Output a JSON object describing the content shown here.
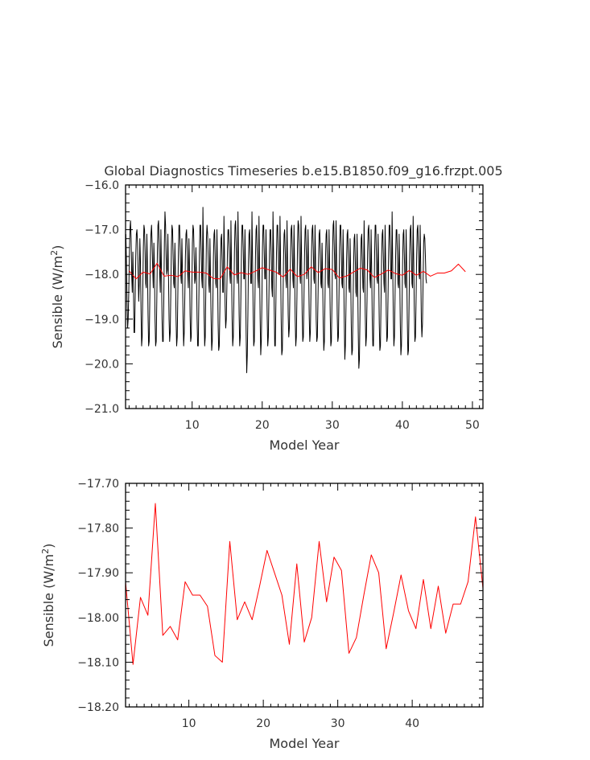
{
  "page": {
    "title": "Global Diagnostics Timeseries b.e15.B1850.f09_g16.frzpt.005"
  },
  "colors": {
    "monthly": "#000000",
    "annual": "#ff0000",
    "text": "#333333",
    "background": "#ffffff"
  },
  "chart_data": [
    {
      "type": "line",
      "title": "Global Diagnostics Timeseries b.e15.B1850.f09_g16.frzpt.005",
      "xlabel": "Model Year",
      "ylabel": "Sensible (W/m²)",
      "ylabel_main": "Sensible (W/m",
      "ylabel_sup": "2",
      "ylabel_end": ")",
      "xlim": [
        0.5,
        51.5
      ],
      "ylim": [
        -21.0,
        -16.0
      ],
      "xticks": [
        10,
        20,
        30,
        40,
        50
      ],
      "xtick_labels": [
        "10",
        "20",
        "30",
        "40",
        "50"
      ],
      "yticks": [
        -21.0,
        -20.0,
        -19.0,
        -18.0,
        -17.0,
        -16.0
      ],
      "ytick_labels": [
        "−21.0",
        "−20.0",
        "−19.0",
        "−18.0",
        "−17.0",
        "−16.0"
      ],
      "grid": false,
      "series": [
        {
          "color": "#000000",
          "x_start": 0.54,
          "x_step": 0.08333,
          "values": [
            -17.1,
            -17.7,
            -18.6,
            -19.2,
            -19.0,
            -18.4,
            -17.6,
            -17.0,
            -16.8,
            -17.2,
            -18.0,
            -18.4,
            -17.5,
            -18.2,
            -19.3,
            -19.3,
            -18.5,
            -17.6,
            -17.1,
            -17.0,
            -17.3,
            -17.9,
            -18.6,
            -18.2,
            -17.2,
            -17.7,
            -18.8,
            -19.6,
            -19.4,
            -18.4,
            -17.4,
            -16.9,
            -17.0,
            -17.5,
            -18.2,
            -18.3,
            -17.1,
            -17.8,
            -18.9,
            -19.6,
            -19.5,
            -18.6,
            -17.6,
            -17.1,
            -16.9,
            -17.3,
            -17.9,
            -18.3,
            -17.3,
            -17.9,
            -19.0,
            -19.6,
            -19.5,
            -18.6,
            -17.5,
            -16.9,
            -16.8,
            -17.3,
            -18.0,
            -18.4,
            -17.0,
            -17.9,
            -19.0,
            -19.5,
            -19.5,
            -18.6,
            -17.3,
            -16.6,
            -16.9,
            -17.6,
            -18.0,
            -17.9,
            -17.1,
            -18.0,
            -19.0,
            -19.5,
            -19.3,
            -18.4,
            -17.4,
            -16.9,
            -17.0,
            -17.6,
            -18.2,
            -18.3,
            -17.3,
            -18.0,
            -19.0,
            -19.6,
            -19.4,
            -18.5,
            -17.5,
            -16.9,
            -16.9,
            -17.4,
            -18.0,
            -18.2,
            -17.2,
            -18.0,
            -19.0,
            -19.6,
            -19.3,
            -18.5,
            -17.6,
            -17.1,
            -17.0,
            -17.4,
            -18.0,
            -18.3,
            -17.2,
            -17.8,
            -18.9,
            -19.5,
            -19.4,
            -18.4,
            -17.3,
            -16.9,
            -17.0,
            -17.6,
            -18.2,
            -18.1,
            -17.4,
            -18.0,
            -19.0,
            -19.6,
            -19.6,
            -18.6,
            -17.5,
            -16.9,
            -16.9,
            -17.5,
            -18.1,
            -18.3,
            -16.5,
            -17.6,
            -18.9,
            -19.6,
            -19.4,
            -18.3,
            -17.2,
            -16.9,
            -17.1,
            -17.6,
            -18.2,
            -18.4,
            -17.2,
            -18.1,
            -19.0,
            -19.7,
            -19.5,
            -18.7,
            -17.6,
            -17.1,
            -17.0,
            -17.6,
            -18.2,
            -18.3,
            -17.0,
            -17.9,
            -19.1,
            -19.7,
            -19.6,
            -18.8,
            -17.7,
            -17.2,
            -17.1,
            -17.7,
            -18.4,
            -18.4,
            -16.7,
            -17.6,
            -18.7,
            -19.2,
            -19.0,
            -18.3,
            -17.5,
            -17.0,
            -17.0,
            -17.4,
            -18.0,
            -18.2,
            -16.8,
            -17.9,
            -19.0,
            -19.6,
            -19.4,
            -18.6,
            -17.5,
            -16.9,
            -16.8,
            -17.4,
            -18.0,
            -18.2,
            -16.6,
            -17.7,
            -18.9,
            -19.6,
            -19.4,
            -18.5,
            -17.5,
            -16.9,
            -16.9,
            -17.4,
            -18.1,
            -18.1,
            -17.0,
            -18.0,
            -19.3,
            -20.2,
            -19.8,
            -18.9,
            -17.7,
            -17.1,
            -17.0,
            -17.6,
            -18.2,
            -18.2,
            -16.6,
            -17.7,
            -18.8,
            -19.6,
            -19.5,
            -18.6,
            -17.6,
            -17.0,
            -16.9,
            -17.5,
            -18.1,
            -18.3,
            -16.7,
            -17.9,
            -19.0,
            -19.8,
            -19.5,
            -18.6,
            -17.4,
            -16.9,
            -16.9,
            -17.5,
            -18.1,
            -18.1,
            -17.0,
            -17.9,
            -18.9,
            -19.6,
            -19.4,
            -18.5,
            -17.5,
            -17.0,
            -17.0,
            -17.6,
            -18.3,
            -18.5,
            -16.6,
            -17.5,
            -18.7,
            -19.6,
            -19.6,
            -18.6,
            -17.5,
            -16.9,
            -16.9,
            -17.5,
            -18.0,
            -18.0,
            -16.7,
            -17.8,
            -19.0,
            -19.8,
            -19.7,
            -18.8,
            -17.7,
            -17.1,
            -17.0,
            -17.5,
            -18.1,
            -18.3,
            -16.8,
            -17.8,
            -18.9,
            -19.4,
            -19.2,
            -18.4,
            -17.6,
            -17.0,
            -16.9,
            -17.4,
            -18.1,
            -18.3,
            -16.9,
            -17.9,
            -19.0,
            -19.6,
            -19.4,
            -18.5,
            -17.3,
            -16.8,
            -16.9,
            -17.5,
            -18.0,
            -18.2,
            -16.7,
            -17.7,
            -18.9,
            -19.5,
            -19.4,
            -18.6,
            -17.6,
            -17.0,
            -16.9,
            -17.5,
            -18.1,
            -17.9,
            -17.0,
            -17.9,
            -18.9,
            -19.5,
            -19.3,
            -18.4,
            -17.5,
            -17.0,
            -16.9,
            -17.4,
            -18.1,
            -18.2,
            -16.9,
            -17.8,
            -19.0,
            -19.5,
            -19.4,
            -18.6,
            -17.7,
            -17.1,
            -17.0,
            -17.5,
            -18.2,
            -18.3,
            -17.3,
            -18.1,
            -19.1,
            -19.7,
            -19.5,
            -18.6,
            -17.6,
            -17.1,
            -17.0,
            -17.6,
            -18.2,
            -18.3,
            -17.0,
            -17.9,
            -18.9,
            -19.6,
            -19.5,
            -18.6,
            -17.5,
            -16.9,
            -16.8,
            -17.4,
            -18.0,
            -18.1,
            -16.8,
            -17.8,
            -18.9,
            -19.5,
            -19.4,
            -18.5,
            -17.4,
            -16.9,
            -16.9,
            -17.5,
            -18.2,
            -18.3,
            -17.0,
            -17.9,
            -19.0,
            -19.9,
            -19.6,
            -18.7,
            -17.7,
            -17.1,
            -17.0,
            -17.6,
            -18.3,
            -18.4,
            -17.2,
            -18.0,
            -19.1,
            -19.8,
            -19.7,
            -18.8,
            -17.8,
            -17.2,
            -17.1,
            -17.7,
            -18.4,
            -18.5,
            -17.1,
            -18.1,
            -19.3,
            -20.1,
            -19.9,
            -18.9,
            -17.8,
            -17.2,
            -17.1,
            -17.7,
            -18.3,
            -18.4,
            -16.8,
            -17.8,
            -18.9,
            -19.6,
            -19.4,
            -18.6,
            -17.5,
            -17.0,
            -16.9,
            -17.5,
            -18.1,
            -18.3,
            -17.0,
            -17.9,
            -19.0,
            -19.6,
            -19.6,
            -18.7,
            -17.6,
            -16.9,
            -16.9,
            -17.5,
            -18.1,
            -18.2,
            -17.1,
            -18.0,
            -19.1,
            -19.7,
            -19.6,
            -18.6,
            -17.6,
            -17.1,
            -17.0,
            -17.6,
            -18.2,
            -18.4,
            -16.9,
            -17.8,
            -18.9,
            -19.5,
            -19.4,
            -18.5,
            -17.5,
            -16.9,
            -16.9,
            -17.5,
            -18.1,
            -18.1,
            -16.6,
            -17.8,
            -18.9,
            -19.6,
            -19.4,
            -18.5,
            -17.6,
            -17.0,
            -17.0,
            -17.5,
            -18.2,
            -18.3,
            -17.1,
            -18.0,
            -19.1,
            -19.8,
            -19.6,
            -18.7,
            -17.7,
            -17.1,
            -17.0,
            -17.6,
            -18.2,
            -18.3,
            -17.0,
            -17.9,
            -19.0,
            -19.8,
            -19.7,
            -18.7,
            -17.6,
            -17.0,
            -16.9,
            -17.5,
            -18.2,
            -18.3,
            -16.7,
            -17.7,
            -18.8,
            -19.5,
            -19.4,
            -18.6,
            -17.6,
            -17.0,
            -16.9,
            -17.4,
            -18.0,
            -18.1,
            -16.9,
            -17.8,
            -19.0,
            -19.4,
            -19.1,
            -18.2,
            -17.3,
            -17.1,
            -17.2,
            -17.6,
            -18.1,
            -18.2
          ]
        },
        {
          "color": "#ff0000",
          "x_start": 1.0,
          "x_step": 1.0,
          "values": [
            -17.92,
            -18.1,
            -17.95,
            -17.99,
            -17.75,
            -18.04,
            -18.02,
            -18.05,
            -17.92,
            -17.95,
            -17.95,
            -17.97,
            -18.09,
            -18.1,
            -17.83,
            -18.01,
            -17.96,
            -18.0,
            -17.93,
            -17.85,
            -17.9,
            -17.95,
            -18.06,
            -17.88,
            -18.05,
            -18.0,
            -17.83,
            -17.96,
            -17.87,
            -17.89,
            -18.08,
            -18.04,
            -17.95,
            -17.86,
            -17.9,
            -18.07,
            -17.99,
            -17.9,
            -17.98,
            -18.02,
            -17.91,
            -18.02,
            -17.93,
            -18.04,
            -17.97,
            -17.97,
            -17.92,
            -17.77,
            -17.94
          ]
        }
      ]
    },
    {
      "type": "line",
      "title": "",
      "xlabel": "Model Year",
      "ylabel": "Sensible (W/m²)",
      "ylabel_main": "Sensible (W/m",
      "ylabel_sup": "2",
      "ylabel_end": ")",
      "xlim": [
        1.5,
        49.5
      ],
      "ylim": [
        -18.2,
        -17.7
      ],
      "xticks": [
        10,
        20,
        30,
        40
      ],
      "xtick_labels": [
        "10",
        "20",
        "30",
        "40"
      ],
      "yticks": [
        -18.2,
        -18.1,
        -18.0,
        -17.9,
        -17.8,
        -17.7
      ],
      "ytick_labels": [
        "−18.20",
        "−18.10",
        "−18.00",
        "−17.90",
        "−17.80",
        "−17.70"
      ],
      "grid": false,
      "series": [
        {
          "color": "#ff0000",
          "x_start": 1.5,
          "x_step": 1.0,
          "values": [
            -17.92,
            -18.105,
            -17.955,
            -17.995,
            -17.745,
            -18.04,
            -18.02,
            -18.05,
            -17.92,
            -17.95,
            -17.95,
            -17.975,
            -18.085,
            -18.1,
            -17.83,
            -18.005,
            -17.965,
            -18.005,
            -17.93,
            -17.85,
            -17.9,
            -17.95,
            -18.06,
            -17.88,
            -18.055,
            -18.0,
            -17.83,
            -17.965,
            -17.865,
            -17.895,
            -18.08,
            -18.045,
            -17.95,
            -17.86,
            -17.9,
            -18.07,
            -17.99,
            -17.905,
            -17.985,
            -18.025,
            -17.915,
            -18.025,
            -17.93,
            -18.035,
            -17.97,
            -17.97,
            -17.92,
            -17.775,
            -17.935
          ]
        }
      ]
    }
  ]
}
